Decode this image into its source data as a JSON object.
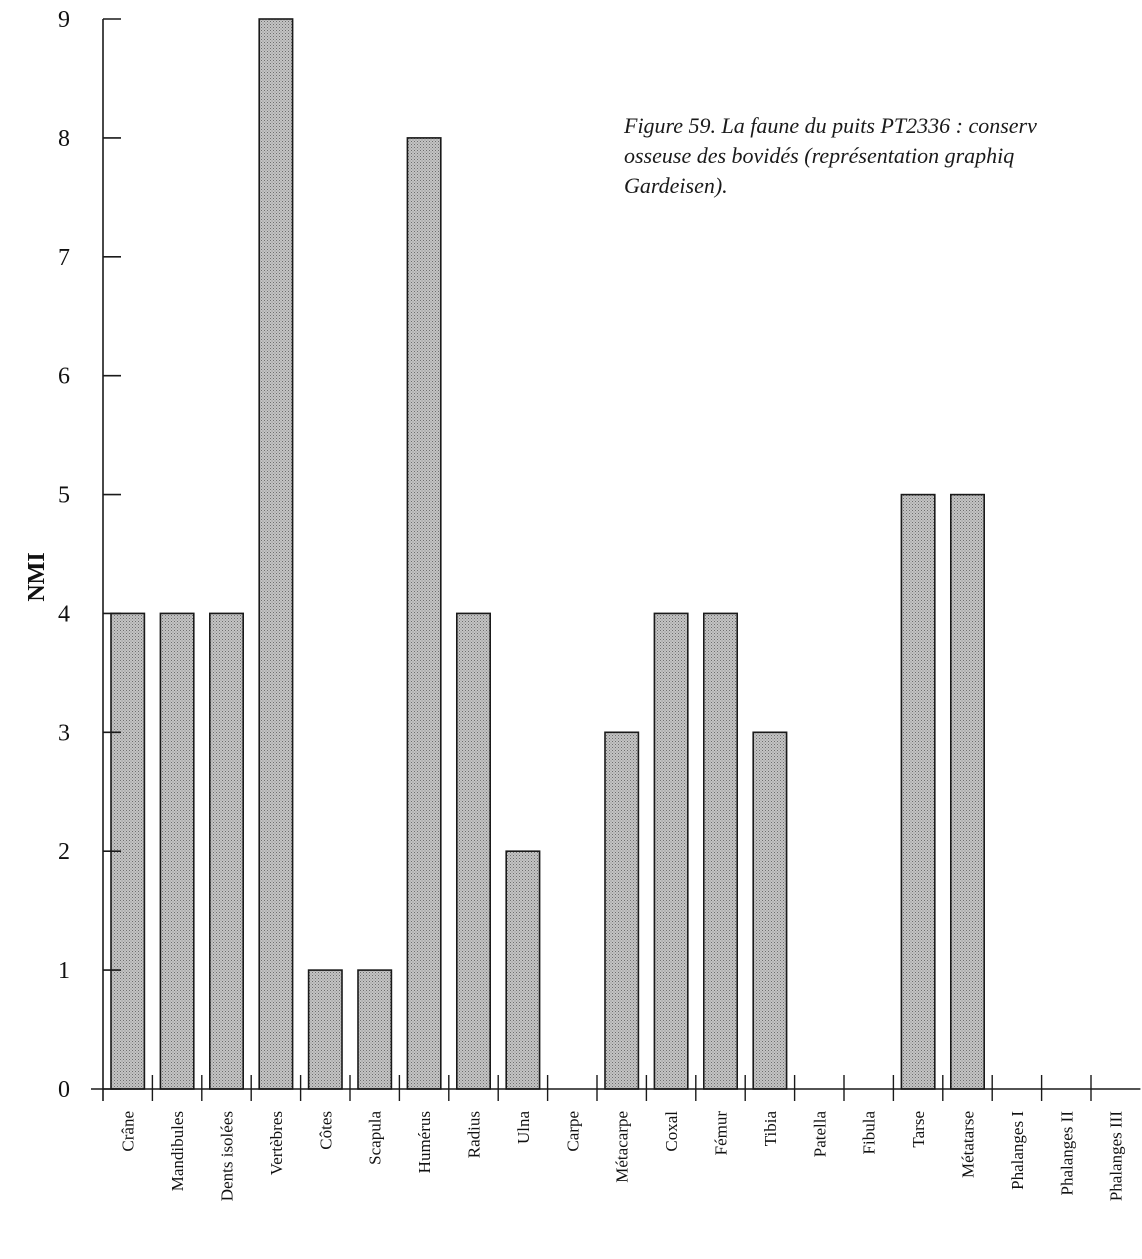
{
  "caption": {
    "line1": "Figure 59. La faune du puits PT2336 : conserv",
    "line2": "osseuse des bovidés (représentation graphiq",
    "line3": "Gardeisen)."
  },
  "chart_data": {
    "type": "bar",
    "title": "",
    "xlabel": "",
    "ylabel": "NMI",
    "ylim": [
      0,
      9
    ],
    "yticks": [
      0,
      1,
      2,
      3,
      4,
      5,
      6,
      7,
      8,
      9
    ],
    "grid": false,
    "categories": [
      "Crâne",
      "Mandibules",
      "Dents isolées",
      "Vertèbres",
      "Côtes",
      "Scapula",
      "Humérus",
      "Radius",
      "Ulna",
      "Carpe",
      "Métacarpe",
      "Coxal",
      "Fémur",
      "Tibia",
      "Patella",
      "Fibula",
      "Tarse",
      "Métatarse",
      "Phalanges I",
      "Phalanges II",
      "Phalanges III"
    ],
    "values": [
      4,
      4,
      4,
      9,
      1,
      1,
      8,
      4,
      2,
      0,
      3,
      4,
      4,
      3,
      0,
      0,
      5,
      5,
      0,
      0,
      0
    ],
    "bar_color": "#b4b4b4"
  }
}
